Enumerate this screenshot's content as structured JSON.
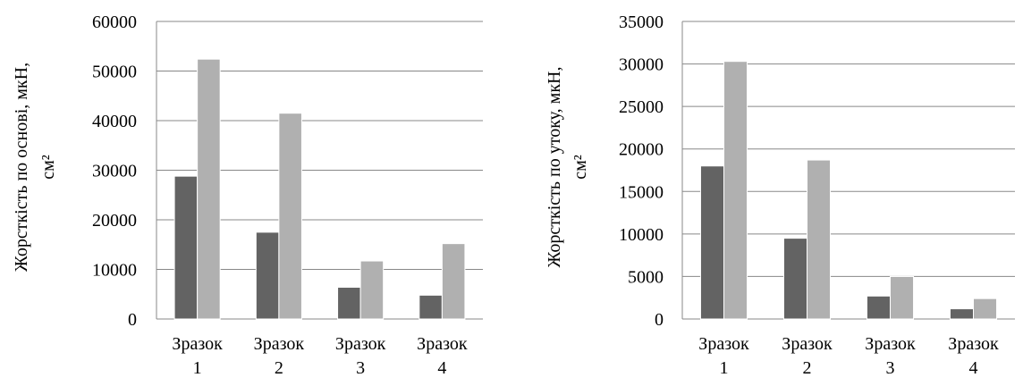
{
  "chart_data": [
    {
      "type": "bar",
      "categories": [
        [
          "Зразок",
          "1"
        ],
        [
          "Зразок",
          "2"
        ],
        [
          "Зразок",
          "3"
        ],
        [
          "Зразок",
          "4"
        ]
      ],
      "ylabel": [
        "Жорсткість  по основі, мкН,",
        "см²"
      ],
      "ylim": [
        0,
        60000
      ],
      "yticks": [
        "0",
        "10000",
        "20000",
        "30000",
        "40000",
        "50000",
        "60000"
      ],
      "grid": true,
      "series": [
        {
          "values": [
            28800,
            17500,
            6400,
            4800
          ],
          "color": "#636363"
        },
        {
          "values": [
            52400,
            41500,
            11700,
            15200
          ],
          "color": "#b0b0b0"
        }
      ]
    },
    {
      "type": "bar",
      "categories": [
        [
          "Зразок",
          "1"
        ],
        [
          "Зразок",
          "2"
        ],
        [
          "Зразок",
          "3"
        ],
        [
          "Зразок",
          "4"
        ]
      ],
      "ylabel": [
        "Жорсткість  по  утоку, мкН,",
        "см²"
      ],
      "ylim": [
        0,
        35000
      ],
      "yticks": [
        "0",
        "5000",
        "10000",
        "15000",
        "20000",
        "25000",
        "30000",
        "35000"
      ],
      "grid": true,
      "series": [
        {
          "values": [
            18000,
            9500,
            2700,
            1200
          ],
          "color": "#636363"
        },
        {
          "values": [
            30300,
            18700,
            5000,
            2400
          ],
          "color": "#b0b0b0"
        }
      ]
    }
  ]
}
